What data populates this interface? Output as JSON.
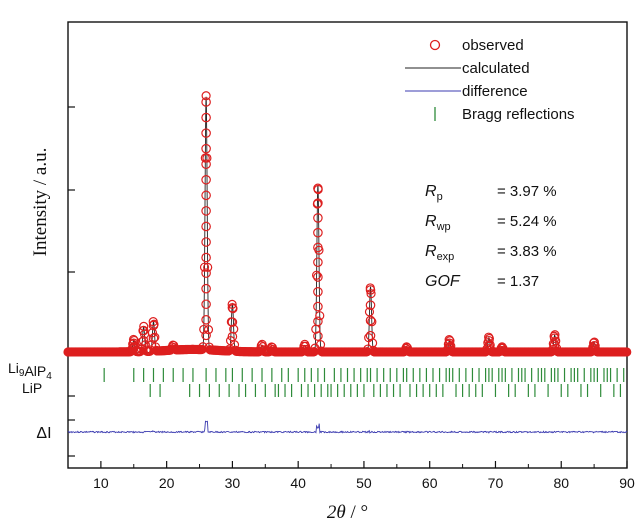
{
  "chart_data": {
    "type": "line",
    "xlabel": "2θ / °",
    "ylabel": "Intensity / a.u.",
    "xlim": [
      5,
      90
    ],
    "xticks": [
      10,
      20,
      30,
      40,
      50,
      60,
      70,
      80,
      90
    ],
    "y_axis_tick_labels_shown": false,
    "grid": false,
    "legend_position": "top-right",
    "legend": [
      {
        "label": "observed",
        "marker": "open-circle",
        "color": "#dd1f1f"
      },
      {
        "label": "calculated",
        "marker": "line",
        "color": "#222222"
      },
      {
        "label": "difference",
        "marker": "line",
        "color": "#3b3bb0"
      },
      {
        "label": "Bragg reflections",
        "marker": "tick",
        "color": "#2e8b3a"
      }
    ],
    "fit_statistics": [
      {
        "symbol": "R",
        "sub": "p",
        "value": "= 3.97 %"
      },
      {
        "symbol": "R",
        "sub": "wp",
        "value": "= 5.24 %"
      },
      {
        "symbol": "R",
        "sub": "exp",
        "value": "= 3.83 %"
      },
      {
        "symbol": "GOF",
        "sub": "",
        "value": "= 1.37"
      }
    ],
    "peaks_relative_intensity": [
      {
        "x": 15.0,
        "y": 0.05
      },
      {
        "x": 16.5,
        "y": 0.1
      },
      {
        "x": 18.0,
        "y": 0.12
      },
      {
        "x": 21.0,
        "y": 0.02
      },
      {
        "x": 26.0,
        "y": 1.0
      },
      {
        "x": 30.0,
        "y": 0.19
      },
      {
        "x": 34.5,
        "y": 0.03
      },
      {
        "x": 36.0,
        "y": 0.02
      },
      {
        "x": 41.0,
        "y": 0.03
      },
      {
        "x": 43.0,
        "y": 0.66
      },
      {
        "x": 51.0,
        "y": 0.26
      },
      {
        "x": 56.5,
        "y": 0.02
      },
      {
        "x": 63.0,
        "y": 0.05
      },
      {
        "x": 69.0,
        "y": 0.06
      },
      {
        "x": 71.0,
        "y": 0.02
      },
      {
        "x": 79.0,
        "y": 0.07
      },
      {
        "x": 85.0,
        "y": 0.04
      }
    ],
    "bragg_phases": [
      {
        "label_main": "Li",
        "label_parts": [
          [
            "Li",
            ""
          ],
          [
            "9",
            "sub"
          ],
          [
            "AlP",
            ""
          ],
          [
            "4",
            "sub"
          ]
        ],
        "positions": [
          10.5,
          15.0,
          16.5,
          18.0,
          19.5,
          21.0,
          22.5,
          24.0,
          26.0,
          27.5,
          29.0,
          30.0,
          31.5,
          33.0,
          34.5,
          36.0,
          37.5,
          38.5,
          40.0,
          41.0,
          42.0,
          43.0,
          44.0,
          45.5,
          46.5,
          47.5,
          48.5,
          49.5,
          50.5,
          51.0,
          52.0,
          53.0,
          54.0,
          55.0,
          56.0,
          56.5,
          57.5,
          58.5,
          59.5,
          60.5,
          61.5,
          62.5,
          63.0,
          63.5,
          64.5,
          65.5,
          66.5,
          67.5,
          68.5,
          69.0,
          69.5,
          70.5,
          71.0,
          71.5,
          72.5,
          73.5,
          74.0,
          74.5,
          75.5,
          76.5,
          77.0,
          77.5,
          78.5,
          79.0,
          79.5,
          80.5,
          81.5,
          82.0,
          82.5,
          83.5,
          84.5,
          85.0,
          85.5,
          86.5,
          87.0,
          87.5,
          88.5,
          89.5
        ]
      },
      {
        "label_main": "LiP",
        "label_parts": [
          [
            "LiP",
            ""
          ]
        ],
        "positions": [
          17.5,
          19.0,
          23.5,
          25.0,
          26.5,
          28.0,
          29.5,
          31.0,
          32.0,
          33.5,
          35.0,
          36.5,
          37.0,
          38.0,
          39.0,
          40.5,
          41.5,
          42.5,
          43.5,
          44.5,
          45.0,
          46.0,
          47.0,
          48.0,
          49.0,
          50.0,
          51.5,
          52.5,
          53.5,
          54.5,
          55.5,
          57.0,
          58.0,
          59.0,
          60.0,
          61.0,
          62.0,
          64.0,
          65.0,
          66.0,
          67.0,
          68.0,
          70.0,
          72.0,
          73.0,
          75.0,
          76.0,
          78.0,
          80.0,
          81.0,
          83.0,
          84.0,
          86.0,
          88.0,
          89.0
        ]
      }
    ],
    "difference_label": "ΔI"
  }
}
